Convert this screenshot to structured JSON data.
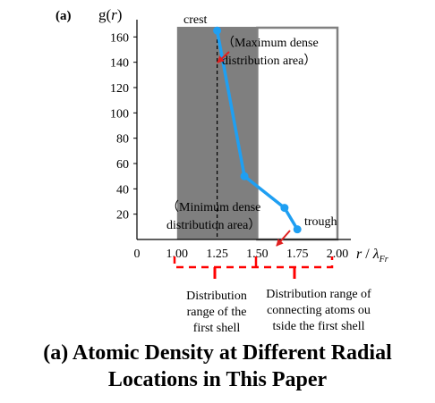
{
  "panel_label": "(a)",
  "y_axis_label": {
    "base": "g(",
    "italic": "r",
    "close": ")"
  },
  "x_axis_label": {
    "italic_r": "r",
    "slash": " / ",
    "lambda": "λ",
    "subscript": "Fr"
  },
  "annotations": {
    "crest": "crest",
    "crest_note_line1": "（Maximum dense",
    "crest_note_line2": "distribution area）",
    "trough": "trough",
    "trough_note_line1": "（Minimum dense",
    "trough_note_line2": "distribution area）"
  },
  "ranges": {
    "first_shell": [
      "Distribution",
      "range of the",
      "first shell"
    ],
    "outer_shell": [
      "Distribution range of",
      "connecting atoms ou",
      "tside the first shell"
    ]
  },
  "caption": {
    "line1": "(a) Atomic Density at Different Radial",
    "line2": "Locations in This Paper"
  },
  "colors": {
    "curve": "#1f9ff2",
    "shaded_region": "#7f7f7f",
    "outline_region": "#808080",
    "arrow": "#e02020",
    "bracket": "#ff0000"
  },
  "chart_data": {
    "type": "line",
    "x": [
      1.25,
      1.42,
      1.67,
      1.75
    ],
    "y": [
      165,
      50,
      25,
      8
    ],
    "xlim": [
      0.75,
      2.0
    ],
    "ylim": [
      0,
      168
    ],
    "x_ticks": [
      "0",
      "1.00",
      "1.25",
      "1.50",
      "1.75",
      "2.00"
    ],
    "y_ticks": [
      "20",
      "40",
      "60",
      "80",
      "100",
      "120",
      "140",
      "160"
    ],
    "shaded_region": [
      1.0,
      1.5
    ],
    "outlined_region": [
      1.5,
      2.0
    ],
    "dashed_marker_x": 1.25,
    "grid": false
  }
}
